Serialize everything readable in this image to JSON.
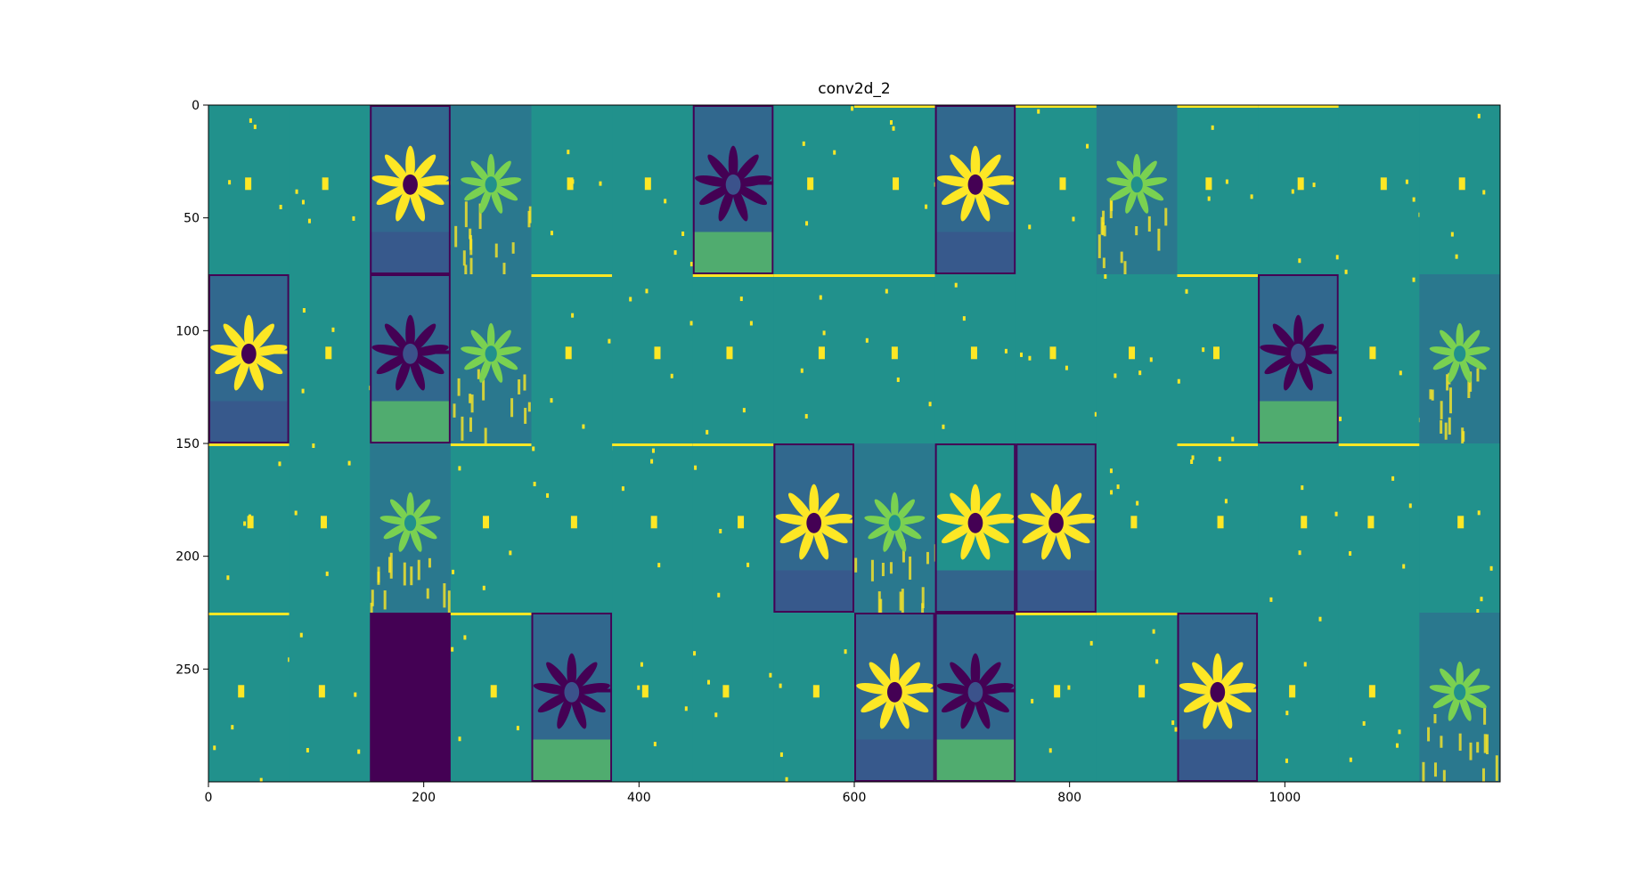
{
  "chart_data": {
    "type": "image",
    "title": "conv2d_2",
    "xlim": [
      0,
      1200
    ],
    "ylim": [
      300,
      0
    ],
    "xticks": [
      0,
      200,
      400,
      600,
      800,
      1000
    ],
    "yticks": [
      0,
      50,
      100,
      150,
      200,
      250
    ],
    "colormap": "viridis"
  }
}
